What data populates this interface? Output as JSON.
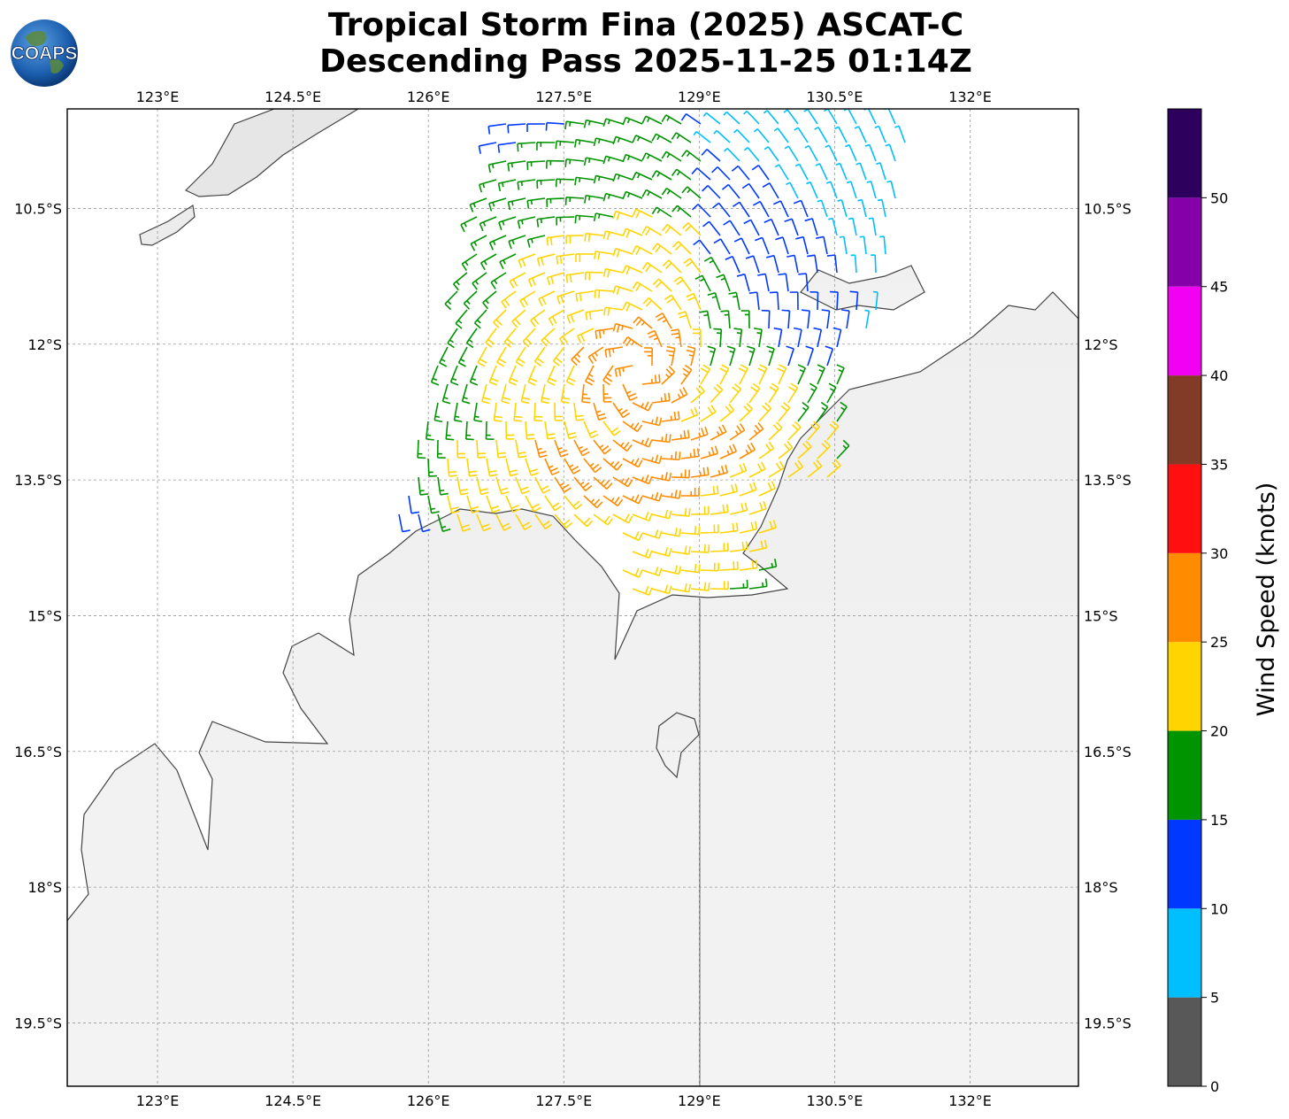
{
  "title": {
    "line1": "Tropical Storm Fina (2025) ASCAT-C",
    "line2": "Descending Pass 2025-11-25 01:14Z"
  },
  "logo": {
    "text": "COAPS",
    "icon": "globe-icon"
  },
  "map": {
    "lon_range": [
      122.0,
      133.2
    ],
    "lat_range": [
      -9.4,
      -20.2
    ],
    "lon_ticks": [
      "123°E",
      "124.5°E",
      "126°E",
      "127.5°E",
      "129°E",
      "130.5°E",
      "132°E"
    ],
    "lon_tick_values": [
      123.0,
      124.5,
      126.0,
      127.5,
      129.0,
      130.5,
      132.0
    ],
    "lat_ticks": [
      "10.5°S",
      "12°S",
      "13.5°S",
      "15°S",
      "16.5°S",
      "18°S",
      "19.5°S"
    ],
    "lat_tick_values": [
      -10.5,
      -12.0,
      -13.5,
      -15.0,
      -16.5,
      -18.0,
      -19.5
    ],
    "gridlines": true,
    "land_shading": "grayscale elevation",
    "storm_center_approx": {
      "lon": 128.3,
      "lat": -12.3
    }
  },
  "colorbar": {
    "label": "Wind Speed (knots)",
    "ticks": [
      "0",
      "5",
      "10",
      "15",
      "20",
      "25",
      "30",
      "35",
      "40",
      "45",
      "50"
    ],
    "bins": [
      {
        "from": 0,
        "to": 5,
        "color": "#585858"
      },
      {
        "from": 5,
        "to": 10,
        "color": "#00bfff"
      },
      {
        "from": 10,
        "to": 15,
        "color": "#0038ff"
      },
      {
        "from": 15,
        "to": 20,
        "color": "#009400"
      },
      {
        "from": 20,
        "to": 25,
        "color": "#ffd400"
      },
      {
        "from": 25,
        "to": 30,
        "color": "#ff8c00"
      },
      {
        "from": 30,
        "to": 35,
        "color": "#ff0f0f"
      },
      {
        "from": 35,
        "to": 40,
        "color": "#823b26"
      },
      {
        "from": 40,
        "to": 45,
        "color": "#f200f2"
      },
      {
        "from": 45,
        "to": 50,
        "color": "#8500a8"
      },
      {
        "from": 50,
        "to": 55,
        "color": "#2e005e"
      }
    ]
  }
}
